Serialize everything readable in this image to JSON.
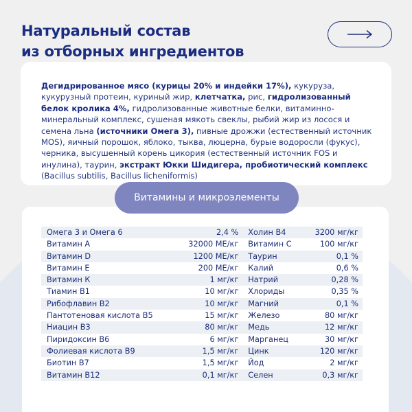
{
  "header": {
    "title_line1": "Натуральный состав",
    "title_line2": "из отборных ингредиентов",
    "next_icon": "arrow-right-icon"
  },
  "ingredients": [
    {
      "text": "Дегидрированное мясо (курицы 20% и индейки 17%),",
      "bold": true
    },
    {
      "text": " кукуруза, кукурузный протеин, куриный жир, ",
      "bold": false
    },
    {
      "text": "клетчатка,",
      "bold": true
    },
    {
      "text": " рис, ",
      "bold": false
    },
    {
      "text": "гидролизованный белок кролика 4%,",
      "bold": true
    },
    {
      "text": " гидролизованные животные белки, витаминно-минеральный комплекс, сушеная мякоть свеклы, рыбий жир из лосося и семена льна ",
      "bold": false
    },
    {
      "text": "(источники Омега 3),",
      "bold": true
    },
    {
      "text": " пивные дрожжи (естественный источник MOS), яичный порошок, яблоко, тыква, люцерна, бурые водоросли (фукус), черника, высушенный корень цикория (естественный источник FOS и инулина), таурин, ",
      "bold": false
    },
    {
      "text": "экстракт Юкки Шидигера, пробиотический комплекс",
      "bold": true
    },
    {
      "text": " (Bacillus subtilis, Bacillus licheniformis)",
      "bold": false
    }
  ],
  "vitamins": {
    "title": "Витамины и микроэлементы",
    "rows": [
      [
        "Омега 3 и Омега 6",
        "2,4 %",
        "Холин В4",
        "3200 мг/кг"
      ],
      [
        "Витамин А",
        "32000 МЕ/кг",
        "Витамин С",
        "100 мг/кг"
      ],
      [
        "Витамин D",
        "1200 МЕ/кг",
        "Таурин",
        "0,1 %"
      ],
      [
        "Витамин Е",
        "200 МЕ/кг",
        "Калий",
        "0,6 %"
      ],
      [
        "Витамин К",
        "1 мг/кг",
        "Натрий",
        "0,28 %"
      ],
      [
        "Тиамин В1",
        "10 мг/кг",
        "Хлориды",
        "0,35 %"
      ],
      [
        "Рибофлавин В2",
        "10 мг/кг",
        "Магний",
        "0,1 %"
      ],
      [
        "Пантотеновая кислота В5",
        "15 мг/кг",
        "Железо",
        "80 мг/кг"
      ],
      [
        "Ниацин В3",
        "80 мг/кг",
        "Медь",
        "12 мг/кг"
      ],
      [
        "Пиридоксин В6",
        "6 мг/кг",
        "Марганец",
        "30 мг/кг"
      ],
      [
        "Фолиевая кислота В9",
        "1,5 мг/кг",
        "Цинк",
        "120 мг/кг"
      ],
      [
        "Биотин В7",
        "1,5 мг/кг",
        "Йод",
        "2 мг/кг"
      ],
      [
        "Витамин В12",
        "0,1 мг/кг",
        "Селен",
        "0,3 мг/кг"
      ]
    ]
  },
  "colors": {
    "primary": "#1b2d80",
    "pill": "#7f85be",
    "background": "#f0f0f1",
    "row_shade": "#eceff4"
  }
}
